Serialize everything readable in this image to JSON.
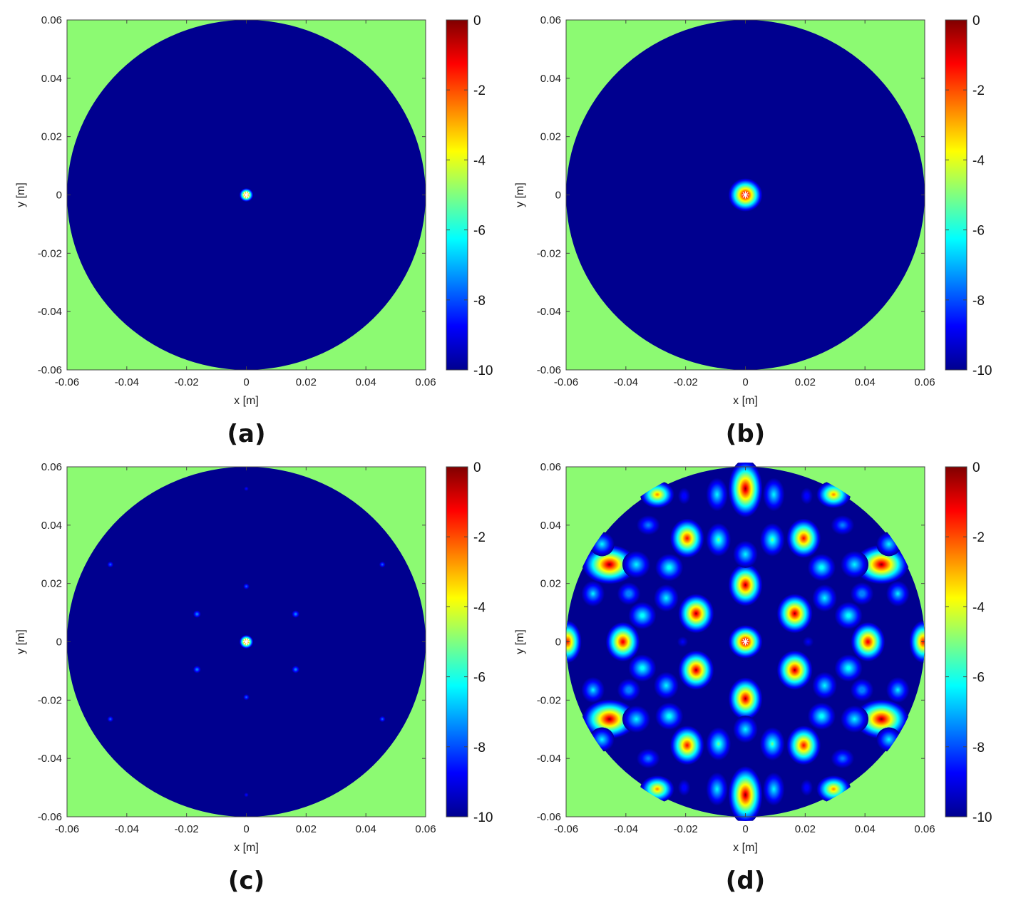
{
  "colors": {
    "background_field": "#8cfa72",
    "circle_fill": "#00008f",
    "jet_stops": [
      "#00008f",
      "#0000ff",
      "#0080ff",
      "#00ffff",
      "#80ff80",
      "#ffff00",
      "#ff8000",
      "#ff0000",
      "#800000"
    ],
    "marker": "#ffffff"
  },
  "chart_data": [
    {
      "type": "heatmap",
      "caption": "(a)",
      "xlabel": "x [m]",
      "ylabel": "y [m]",
      "xlim": [
        -0.06,
        0.06
      ],
      "ylim": [
        -0.06,
        0.06
      ],
      "x_ticks": [
        "-0.06",
        "-0.04",
        "-0.02",
        "0",
        "0.02",
        "0.04",
        "0.06"
      ],
      "y_ticks": [
        "0.06",
        "0.04",
        "0.02",
        "0",
        "-0.02",
        "-0.04",
        "-0.06"
      ],
      "colorbar": {
        "range": [
          -10,
          0
        ],
        "ticks": [
          "0",
          "-2",
          "-4",
          "-6",
          "-8",
          "-10"
        ]
      },
      "aperture_radius": 0.06,
      "marker": [
        0,
        0
      ],
      "spots": [
        {
          "x": 0,
          "y": 0,
          "sx": 0.0009,
          "sy": 0.0009,
          "level": 0
        }
      ]
    },
    {
      "type": "heatmap",
      "caption": "(b)",
      "xlabel": "x [m]",
      "ylabel": "y [m]",
      "xlim": [
        -0.06,
        0.06
      ],
      "ylim": [
        -0.06,
        0.06
      ],
      "x_ticks": [
        "-0.06",
        "-0.04",
        "-0.02",
        "0",
        "0.02",
        "0.04",
        "0.06"
      ],
      "y_ticks": [
        "0.06",
        "0.04",
        "0.02",
        "0",
        "-0.02",
        "-0.04",
        "-0.06"
      ],
      "colorbar": {
        "range": [
          -10,
          0
        ],
        "ticks": [
          "0",
          "-2",
          "-4",
          "-6",
          "-8",
          "-10"
        ]
      },
      "aperture_radius": 0.06,
      "marker": [
        0,
        0
      ],
      "spots": [
        {
          "x": 0,
          "y": 0,
          "sx": 0.0022,
          "sy": 0.0022,
          "level": 0
        }
      ]
    },
    {
      "type": "heatmap",
      "caption": "(c)",
      "xlabel": "x [m]",
      "ylabel": "y [m]",
      "xlim": [
        -0.06,
        0.06
      ],
      "ylim": [
        -0.06,
        0.06
      ],
      "x_ticks": [
        "-0.06",
        "-0.04",
        "-0.02",
        "0",
        "0.02",
        "0.04",
        "0.06"
      ],
      "y_ticks": [
        "0.06",
        "0.04",
        "0.02",
        "0",
        "-0.02",
        "-0.04",
        "-0.06"
      ],
      "colorbar": {
        "range": [
          -10,
          0
        ],
        "ticks": [
          "0",
          "-2",
          "-4",
          "-6",
          "-8",
          "-10"
        ]
      },
      "aperture_radius": 0.06,
      "marker": [
        0,
        0
      ],
      "spots": [
        {
          "x": 0,
          "y": 0,
          "sx": 0.0009,
          "sy": 0.0009,
          "level": 0
        },
        {
          "x": 0,
          "y": 0.019,
          "sx": 0.0004,
          "sy": 0.0004,
          "level": -7.5
        },
        {
          "x": 0,
          "y": -0.019,
          "sx": 0.0004,
          "sy": 0.0004,
          "level": -7.5
        },
        {
          "x": 0.0165,
          "y": 0.0095,
          "sx": 0.0005,
          "sy": 0.0005,
          "level": -7
        },
        {
          "x": -0.0165,
          "y": 0.0095,
          "sx": 0.0005,
          "sy": 0.0005,
          "level": -7
        },
        {
          "x": 0.0165,
          "y": -0.0095,
          "sx": 0.0005,
          "sy": 0.0005,
          "level": -7
        },
        {
          "x": -0.0165,
          "y": -0.0095,
          "sx": 0.0005,
          "sy": 0.0005,
          "level": -7
        },
        {
          "x": 0.0455,
          "y": 0.0265,
          "sx": 0.0004,
          "sy": 0.0004,
          "level": -7.5
        },
        {
          "x": -0.0455,
          "y": 0.0265,
          "sx": 0.0004,
          "sy": 0.0004,
          "level": -7.5
        },
        {
          "x": 0.0455,
          "y": -0.0265,
          "sx": 0.0004,
          "sy": 0.0004,
          "level": -7.5
        },
        {
          "x": -0.0455,
          "y": -0.0265,
          "sx": 0.0004,
          "sy": 0.0004,
          "level": -7.5
        },
        {
          "x": 0,
          "y": 0.0525,
          "sx": 0.0003,
          "sy": 0.0003,
          "level": -8.5
        },
        {
          "x": 0,
          "y": -0.0525,
          "sx": 0.0003,
          "sy": 0.0003,
          "level": -8.5
        }
      ]
    },
    {
      "type": "heatmap",
      "caption": "(d)",
      "xlabel": "x [m]",
      "ylabel": "y [m]",
      "xlim": [
        -0.06,
        0.06
      ],
      "ylim": [
        -0.06,
        0.06
      ],
      "x_ticks": [
        "-0.06",
        "-0.04",
        "-0.02",
        "0",
        "0.02",
        "0.04",
        "0.06"
      ],
      "y_ticks": [
        "0.06",
        "0.04",
        "0.02",
        "0",
        "-0.02",
        "-0.04",
        "-0.06"
      ],
      "colorbar": {
        "range": [
          -10,
          0
        ],
        "ticks": [
          "0",
          "-2",
          "-4",
          "-6",
          "-8",
          "-10"
        ]
      },
      "aperture_radius": 0.06,
      "marker": [
        0,
        0
      ],
      "spots": [
        {
          "x": 0,
          "y": 0,
          "sx": 0.0022,
          "sy": 0.0022,
          "level": 0
        },
        {
          "x": 0,
          "y": 0.0195,
          "sx": 0.0022,
          "sy": 0.0028,
          "level": -0.5
        },
        {
          "x": 0,
          "y": -0.0195,
          "sx": 0.0022,
          "sy": 0.0028,
          "level": -0.5
        },
        {
          "x": 0.0165,
          "y": 0.0097,
          "sx": 0.0023,
          "sy": 0.0026,
          "level": -0.5
        },
        {
          "x": -0.0165,
          "y": 0.0097,
          "sx": 0.0023,
          "sy": 0.0026,
          "level": -0.5
        },
        {
          "x": 0.0165,
          "y": -0.0097,
          "sx": 0.0023,
          "sy": 0.0026,
          "level": -0.5
        },
        {
          "x": -0.0165,
          "y": -0.0097,
          "sx": 0.0023,
          "sy": 0.0026,
          "level": -0.5
        },
        {
          "x": 0,
          "y": 0.0525,
          "sx": 0.0022,
          "sy": 0.0038,
          "level": -0.3
        },
        {
          "x": 0,
          "y": -0.0525,
          "sx": 0.0022,
          "sy": 0.0038,
          "level": -0.3
        },
        {
          "x": 0.0455,
          "y": 0.0265,
          "sx": 0.0035,
          "sy": 0.0026,
          "level": -0.3
        },
        {
          "x": -0.0455,
          "y": 0.0265,
          "sx": 0.0035,
          "sy": 0.0026,
          "level": -0.3
        },
        {
          "x": 0.0455,
          "y": -0.0265,
          "sx": 0.0035,
          "sy": 0.0026,
          "level": -0.3
        },
        {
          "x": -0.0455,
          "y": -0.0265,
          "sx": 0.0035,
          "sy": 0.0026,
          "level": -0.3
        },
        {
          "x": 0.041,
          "y": 0,
          "sx": 0.0022,
          "sy": 0.0026,
          "level": -0.8
        },
        {
          "x": -0.041,
          "y": 0,
          "sx": 0.0022,
          "sy": 0.0026,
          "level": -0.8
        },
        {
          "x": 0.0595,
          "y": 0,
          "sx": 0.0018,
          "sy": 0.0028,
          "level": -1.2
        },
        {
          "x": -0.0595,
          "y": 0,
          "sx": 0.0018,
          "sy": 0.0028,
          "level": -1.2
        },
        {
          "x": 0.0195,
          "y": 0.0355,
          "sx": 0.0022,
          "sy": 0.0026,
          "level": -1.2
        },
        {
          "x": -0.0195,
          "y": 0.0355,
          "sx": 0.0022,
          "sy": 0.0026,
          "level": -1.2
        },
        {
          "x": 0.0195,
          "y": -0.0355,
          "sx": 0.0022,
          "sy": 0.0026,
          "level": -1.2
        },
        {
          "x": -0.0195,
          "y": -0.0355,
          "sx": 0.0022,
          "sy": 0.0026,
          "level": -1.2
        },
        {
          "x": 0.0295,
          "y": 0.0505,
          "sx": 0.0022,
          "sy": 0.0018,
          "level": -2.5
        },
        {
          "x": -0.0295,
          "y": 0.0505,
          "sx": 0.0022,
          "sy": 0.0018,
          "level": -2.5
        },
        {
          "x": 0.0295,
          "y": -0.0505,
          "sx": 0.0022,
          "sy": 0.0018,
          "level": -2.5
        },
        {
          "x": -0.0295,
          "y": -0.0505,
          "sx": 0.0022,
          "sy": 0.0018,
          "level": -2.5
        },
        {
          "x": 0.009,
          "y": 0.035,
          "sx": 0.0016,
          "sy": 0.0022,
          "level": -5.5
        },
        {
          "x": -0.009,
          "y": 0.035,
          "sx": 0.0016,
          "sy": 0.0022,
          "level": -5.5
        },
        {
          "x": 0.009,
          "y": -0.035,
          "sx": 0.0016,
          "sy": 0.0022,
          "level": -5.5
        },
        {
          "x": -0.009,
          "y": -0.035,
          "sx": 0.0016,
          "sy": 0.0022,
          "level": -5.5
        },
        {
          "x": 0.0255,
          "y": 0.0255,
          "sx": 0.0018,
          "sy": 0.0018,
          "level": -5.8
        },
        {
          "x": -0.0255,
          "y": 0.0255,
          "sx": 0.0018,
          "sy": 0.0018,
          "level": -5.8
        },
        {
          "x": 0.0255,
          "y": -0.0255,
          "sx": 0.0018,
          "sy": 0.0018,
          "level": -5.8
        },
        {
          "x": -0.0255,
          "y": -0.0255,
          "sx": 0.0018,
          "sy": 0.0018,
          "level": -5.8
        },
        {
          "x": 0.0345,
          "y": 0.009,
          "sx": 0.0018,
          "sy": 0.0018,
          "level": -5.8
        },
        {
          "x": -0.0345,
          "y": 0.009,
          "sx": 0.0018,
          "sy": 0.0018,
          "level": -5.8
        },
        {
          "x": 0.0345,
          "y": -0.009,
          "sx": 0.0018,
          "sy": 0.0018,
          "level": -5.8
        },
        {
          "x": -0.0345,
          "y": -0.009,
          "sx": 0.0018,
          "sy": 0.0018,
          "level": -5.8
        },
        {
          "x": 0.0265,
          "y": 0.015,
          "sx": 0.0016,
          "sy": 0.0018,
          "level": -6.3
        },
        {
          "x": -0.0265,
          "y": 0.015,
          "sx": 0.0016,
          "sy": 0.0018,
          "level": -6.3
        },
        {
          "x": 0.0265,
          "y": -0.015,
          "sx": 0.0016,
          "sy": 0.0018,
          "level": -6.3
        },
        {
          "x": -0.0265,
          "y": -0.015,
          "sx": 0.0016,
          "sy": 0.0018,
          "level": -6.3
        },
        {
          "x": 0,
          "y": 0.03,
          "sx": 0.0016,
          "sy": 0.0018,
          "level": -6.3
        },
        {
          "x": 0,
          "y": -0.03,
          "sx": 0.0016,
          "sy": 0.0018,
          "level": -6.3
        },
        {
          "x": 0.0365,
          "y": 0.0265,
          "sx": 0.0018,
          "sy": 0.0018,
          "level": -6.3
        },
        {
          "x": -0.0365,
          "y": 0.0265,
          "sx": 0.0018,
          "sy": 0.0018,
          "level": -6.3
        },
        {
          "x": 0.0365,
          "y": -0.0265,
          "sx": 0.0018,
          "sy": 0.0018,
          "level": -6.3
        },
        {
          "x": -0.0365,
          "y": -0.0265,
          "sx": 0.0018,
          "sy": 0.0018,
          "level": -6.3
        },
        {
          "x": 0.0095,
          "y": 0.0505,
          "sx": 0.0014,
          "sy": 0.0022,
          "level": -6.3
        },
        {
          "x": -0.0095,
          "y": 0.0505,
          "sx": 0.0014,
          "sy": 0.0022,
          "level": -6.3
        },
        {
          "x": 0.0095,
          "y": -0.0505,
          "sx": 0.0014,
          "sy": 0.0022,
          "level": -6.3
        },
        {
          "x": -0.0095,
          "y": -0.0505,
          "sx": 0.0014,
          "sy": 0.0022,
          "level": -6.3
        },
        {
          "x": 0.048,
          "y": 0.0335,
          "sx": 0.0016,
          "sy": 0.0016,
          "level": -6.3
        },
        {
          "x": -0.048,
          "y": 0.0335,
          "sx": 0.0016,
          "sy": 0.0016,
          "level": -6.3
        },
        {
          "x": 0.048,
          "y": -0.0335,
          "sx": 0.0016,
          "sy": 0.0016,
          "level": -6.3
        },
        {
          "x": -0.048,
          "y": -0.0335,
          "sx": 0.0016,
          "sy": 0.0016,
          "level": -6.3
        },
        {
          "x": 0.051,
          "y": 0.0165,
          "sx": 0.0015,
          "sy": 0.0017,
          "level": -6.6
        },
        {
          "x": -0.051,
          "y": 0.0165,
          "sx": 0.0015,
          "sy": 0.0017,
          "level": -6.6
        },
        {
          "x": 0.051,
          "y": -0.0165,
          "sx": 0.0015,
          "sy": 0.0017,
          "level": -6.6
        },
        {
          "x": -0.051,
          "y": -0.0165,
          "sx": 0.0015,
          "sy": 0.0017,
          "level": -6.6
        },
        {
          "x": 0.039,
          "y": 0.0165,
          "sx": 0.0015,
          "sy": 0.0015,
          "level": -6.9
        },
        {
          "x": -0.039,
          "y": 0.0165,
          "sx": 0.0015,
          "sy": 0.0015,
          "level": -6.9
        },
        {
          "x": 0.039,
          "y": -0.0165,
          "sx": 0.0015,
          "sy": 0.0015,
          "level": -6.9
        },
        {
          "x": -0.039,
          "y": -0.0165,
          "sx": 0.0015,
          "sy": 0.0015,
          "level": -6.9
        },
        {
          "x": 0.0325,
          "y": 0.04,
          "sx": 0.0015,
          "sy": 0.0013,
          "level": -7.3
        },
        {
          "x": -0.0325,
          "y": 0.04,
          "sx": 0.0015,
          "sy": 0.0013,
          "level": -7.3
        },
        {
          "x": 0.0325,
          "y": -0.04,
          "sx": 0.0015,
          "sy": 0.0013,
          "level": -7.3
        },
        {
          "x": -0.0325,
          "y": -0.04,
          "sx": 0.0015,
          "sy": 0.0013,
          "level": -7.3
        },
        {
          "x": 0.0205,
          "y": 0.05,
          "sx": 0.0008,
          "sy": 0.0011,
          "level": -8.3
        },
        {
          "x": -0.0205,
          "y": 0.05,
          "sx": 0.0008,
          "sy": 0.0011,
          "level": -8.3
        },
        {
          "x": 0.0205,
          "y": -0.05,
          "sx": 0.0008,
          "sy": 0.0011,
          "level": -8.3
        },
        {
          "x": -0.0205,
          "y": -0.05,
          "sx": 0.0008,
          "sy": 0.0011,
          "level": -8.3
        },
        {
          "x": 0.021,
          "y": 0,
          "sx": 0.0007,
          "sy": 0.0007,
          "level": -9
        },
        {
          "x": -0.021,
          "y": 0,
          "sx": 0.0007,
          "sy": 0.0007,
          "level": -9
        }
      ]
    }
  ]
}
